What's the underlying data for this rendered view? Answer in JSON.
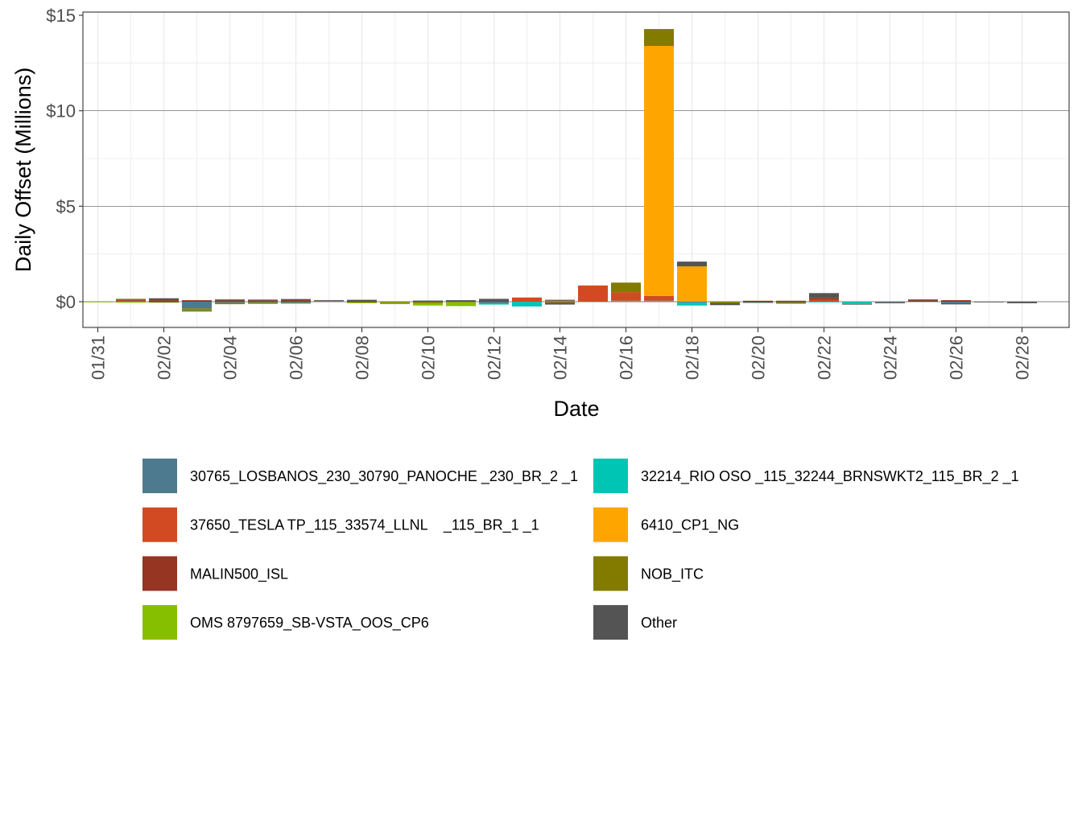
{
  "chart_data": {
    "type": "bar",
    "stacked": true,
    "xlabel": "Date",
    "ylabel": "Daily Offset (Millions)",
    "ylim": [
      -1.35,
      15.1
    ],
    "y_ticks": [
      0,
      5,
      10,
      15
    ],
    "y_tick_labels": [
      "$0",
      "$5",
      "$10",
      "$15"
    ],
    "x_tick_labels": [
      "01/31",
      "02/02",
      "02/04",
      "02/06",
      "02/08",
      "02/10",
      "02/12",
      "02/14",
      "02/16",
      "02/18",
      "02/20",
      "02/22",
      "02/24",
      "02/26",
      "02/28"
    ],
    "dates": [
      "01/31",
      "02/01",
      "02/02",
      "02/03",
      "02/04",
      "02/05",
      "02/06",
      "02/07",
      "02/08",
      "02/09",
      "02/10",
      "02/11",
      "02/12",
      "02/13",
      "02/14",
      "02/15",
      "02/16",
      "02/17",
      "02/18",
      "02/19",
      "02/20",
      "02/21",
      "02/22",
      "02/23",
      "02/24",
      "02/25",
      "02/26",
      "02/27",
      "02/28"
    ],
    "grid": true,
    "legend_position": "bottom",
    "series": [
      {
        "name": "30765_LOSBANOS_230_30790_PANOCHE _230_BR_2 _1",
        "color": "#4E7A8F",
        "values": [
          0,
          0,
          0,
          -0.35,
          -0.05,
          -0.03,
          -0.05,
          0,
          0,
          0,
          0,
          0,
          -0.1,
          0,
          0,
          0,
          0,
          0,
          -0.05,
          0,
          0,
          0,
          0,
          0,
          -0.03,
          0,
          -0.08,
          0,
          0
        ]
      },
      {
        "name": "32214_RIO OSO _115_32244_BRNSWKT2_115_BR_2 _1",
        "color": "#00C5B5",
        "values": [
          0,
          0,
          0,
          0,
          0,
          0,
          0,
          0,
          0,
          0,
          0,
          0,
          -0.05,
          -0.25,
          0.05,
          0,
          0.05,
          0.05,
          -0.15,
          0,
          0,
          0,
          -0.03,
          -0.12,
          0,
          0,
          0,
          0,
          0
        ]
      },
      {
        "name": "37650_TESLA TP_115_33574_LLNL    _115_BR_1 _1",
        "color": "#D24A22",
        "values": [
          0,
          0.05,
          0,
          0,
          0,
          0,
          0,
          0,
          0,
          0,
          0,
          0,
          0,
          0.22,
          0,
          0.85,
          0.45,
          0.25,
          0,
          0,
          0,
          0,
          0.1,
          0,
          0,
          0,
          0,
          0,
          0
        ]
      },
      {
        "name": "6410_CP1_NG",
        "color": "#FFA500",
        "values": [
          0,
          0,
          0,
          0,
          0,
          0,
          0,
          0,
          0,
          0,
          0,
          0,
          0,
          0,
          0,
          0,
          0,
          13.1,
          1.85,
          0,
          0,
          0,
          0,
          0,
          0,
          0,
          0,
          0,
          0
        ]
      },
      {
        "name": "MALIN500_ISL",
        "color": "#953522",
        "values": [
          0,
          0.06,
          0.08,
          0.08,
          0.06,
          0.06,
          0.08,
          0,
          0,
          0,
          0,
          0,
          0,
          0,
          0.05,
          0,
          0,
          0.03,
          0,
          0,
          0.05,
          0.05,
          0.1,
          0,
          0,
          0.08,
          0.08,
          0,
          0
        ]
      },
      {
        "name": "NOB_ITC",
        "color": "#837A00",
        "values": [
          0,
          0.04,
          -0.05,
          -0.08,
          -0.08,
          -0.08,
          -0.05,
          0.03,
          -0.05,
          -0.05,
          -0.08,
          -0.03,
          0,
          0,
          -0.05,
          0,
          0.5,
          0.85,
          0,
          -0.08,
          0,
          -0.05,
          0,
          0,
          0,
          0,
          0,
          0,
          0
        ]
      },
      {
        "name": "OMS 8797659_SB-VSTA_OOS_CP6",
        "color": "#86BF00",
        "values": [
          -0.03,
          -0.05,
          0,
          -0.03,
          0,
          0,
          0,
          0,
          -0.03,
          -0.03,
          -0.12,
          -0.2,
          0,
          0,
          0,
          0,
          0,
          0,
          0,
          0,
          0,
          0,
          0,
          0,
          0,
          0,
          0,
          0,
          0
        ]
      },
      {
        "name": "Other",
        "color": "#545454",
        "values": [
          0,
          0,
          0.1,
          -0.05,
          0.06,
          0.05,
          0.06,
          0.05,
          0.1,
          -0.03,
          0.06,
          0.08,
          0.15,
          0,
          -0.1,
          0,
          0,
          0,
          0.25,
          -0.1,
          -0.06,
          -0.05,
          0.25,
          -0.03,
          -0.05,
          0.04,
          -0.06,
          -0.03,
          -0.08
        ]
      }
    ]
  }
}
